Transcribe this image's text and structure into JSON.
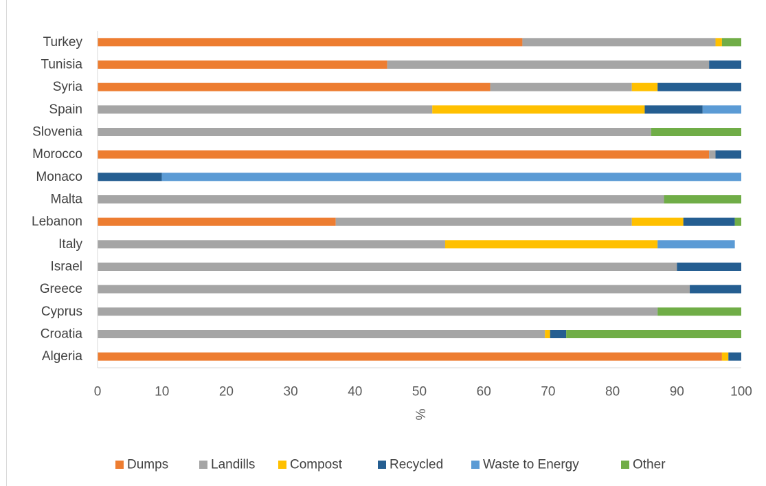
{
  "chart_data": {
    "type": "bar",
    "orientation": "horizontal",
    "stacked": true,
    "categories": [
      "Algeria",
      "Croatia",
      "Cyprus",
      "Greece",
      "Israel",
      "Italy",
      "Lebanon",
      "Malta",
      "Monaco",
      "Morocco",
      "Slovenia",
      "Spain",
      "Syria",
      "Tunisia",
      "Turkey"
    ],
    "series": [
      {
        "name": "Dumps",
        "color": "#ed7d31",
        "values": [
          97,
          0,
          0,
          0,
          0,
          0,
          37,
          0,
          0,
          95,
          0,
          0,
          61,
          45,
          66
        ]
      },
      {
        "name": "Landills",
        "color": "#a5a5a5",
        "values": [
          0,
          69.5,
          87,
          92,
          90,
          54,
          46,
          88,
          0,
          1,
          86,
          52,
          22,
          50,
          30
        ]
      },
      {
        "name": "Compost",
        "color": "#ffc000",
        "values": [
          1,
          0.8,
          0,
          0,
          0,
          33,
          8,
          0,
          0,
          0,
          0,
          33,
          4,
          0,
          1
        ]
      },
      {
        "name": "Recycled",
        "color": "#255e91",
        "values": [
          2,
          2.5,
          0,
          8,
          10,
          0,
          8,
          0,
          10,
          4,
          0,
          9,
          13,
          5,
          0
        ]
      },
      {
        "name": "Waste to Energy",
        "color": "#5b9bd5",
        "values": [
          0,
          0,
          0,
          0,
          0,
          12,
          0,
          0,
          90,
          0,
          0,
          6,
          0,
          0,
          0
        ]
      },
      {
        "name": "Other",
        "color": "#70ad47",
        "values": [
          0,
          27.2,
          13,
          0,
          0,
          0,
          1,
          12,
          0,
          0,
          14,
          0,
          0,
          0,
          3
        ]
      }
    ],
    "xlim": [
      0,
      100
    ],
    "xticks": [
      "0",
      "10",
      "20",
      "30",
      "40",
      "50",
      "60",
      "70",
      "80",
      "90",
      "100"
    ],
    "xlabel": "%",
    "ylabel": "",
    "title": "",
    "grid": false,
    "legend_position": "bottom"
  }
}
